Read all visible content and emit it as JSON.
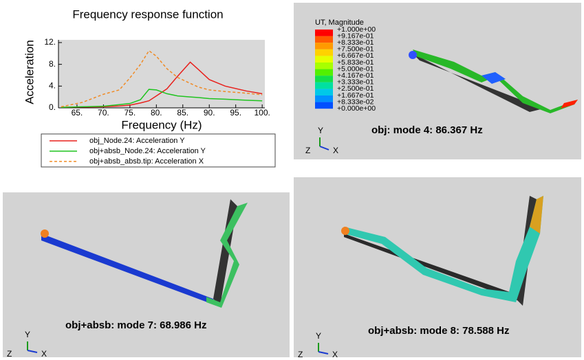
{
  "chart_data": {
    "type": "line",
    "title": "Frequency response function",
    "x_label": "Frequency (Hz)",
    "y_label": "Acceleration",
    "x": [
      62,
      66,
      70,
      73,
      75,
      77,
      78.6,
      80,
      82,
      84,
      86.4,
      88,
      90,
      93,
      97,
      100
    ],
    "series": [
      {
        "name": "obj_Node.24: Acceleration Y",
        "color": "#e8201c",
        "dash": false,
        "values": [
          0.1,
          0.15,
          0.2,
          0.35,
          0.5,
          0.9,
          1.3,
          2.2,
          3.5,
          5.8,
          8.4,
          7.0,
          5.2,
          4.0,
          3.1,
          2.6
        ]
      },
      {
        "name": "obj+absb_Node.24: Acceleration Y",
        "color": "#1fc31f",
        "dash": false,
        "values": [
          0.1,
          0.2,
          0.3,
          0.6,
          0.8,
          1.5,
          3.4,
          3.3,
          2.6,
          2.2,
          2.0,
          1.9,
          1.7,
          1.6,
          1.4,
          1.3
        ]
      },
      {
        "name": "obj+absb_absb.tip: Acceleration X",
        "color": "#f08a24",
        "dash": true,
        "values": [
          0.2,
          1.0,
          2.5,
          3.3,
          5.5,
          8.0,
          10.5,
          9.5,
          7.2,
          5.6,
          4.5,
          3.8,
          3.3,
          3.0,
          2.7,
          2.4
        ]
      }
    ],
    "xlim": [
      61.5,
      100.5
    ],
    "ylim": [
      0,
      12.5
    ],
    "xticks": [
      {
        "value": 65,
        "label": "65."
      },
      {
        "value": 70,
        "label": "70."
      },
      {
        "value": 75,
        "label": "75."
      },
      {
        "value": 80,
        "label": "80."
      },
      {
        "value": 85,
        "label": "85."
      },
      {
        "value": 90,
        "label": "90."
      },
      {
        "value": 95,
        "label": "95."
      },
      {
        "value": 100,
        "label": "100."
      }
    ],
    "yticks": [
      {
        "value": 0,
        "label": "0."
      },
      {
        "value": 4,
        "label": "4."
      },
      {
        "value": 8,
        "label": "8."
      },
      {
        "value": 12,
        "label": "12."
      }
    ]
  },
  "contour_legend": {
    "title": "UT, Magnitude",
    "labels": [
      "+1.000e+00",
      "+9.167e-01",
      "+8.333e-01",
      "+7.500e-01",
      "+6.667e-01",
      "+5.833e-01",
      "+5.000e-01",
      "+4.167e-01",
      "+3.333e-01",
      "+2.500e-01",
      "+1.667e-01",
      "+8.333e-02",
      "+0.000e+00"
    ],
    "colors": [
      "#ff0000",
      "#ff5a00",
      "#ff9a00",
      "#ffd200",
      "#e6ff00",
      "#a8ff00",
      "#52f000",
      "#12e04a",
      "#00e0a0",
      "#00c8e8",
      "#0090ff",
      "#0050ff",
      "#0010e0"
    ]
  },
  "panels": [
    {
      "caption": "obj: mode 4:   86.367 Hz",
      "triad": [
        "Y",
        "Z",
        "X"
      ]
    },
    {
      "caption": "obj+absb: mode 7:   68.986 Hz",
      "triad": [
        "Y",
        "Z",
        "X"
      ]
    },
    {
      "caption": "obj+absb: mode 8:   78.588 Hz",
      "triad": [
        "Y",
        "Z",
        "X"
      ]
    }
  ]
}
